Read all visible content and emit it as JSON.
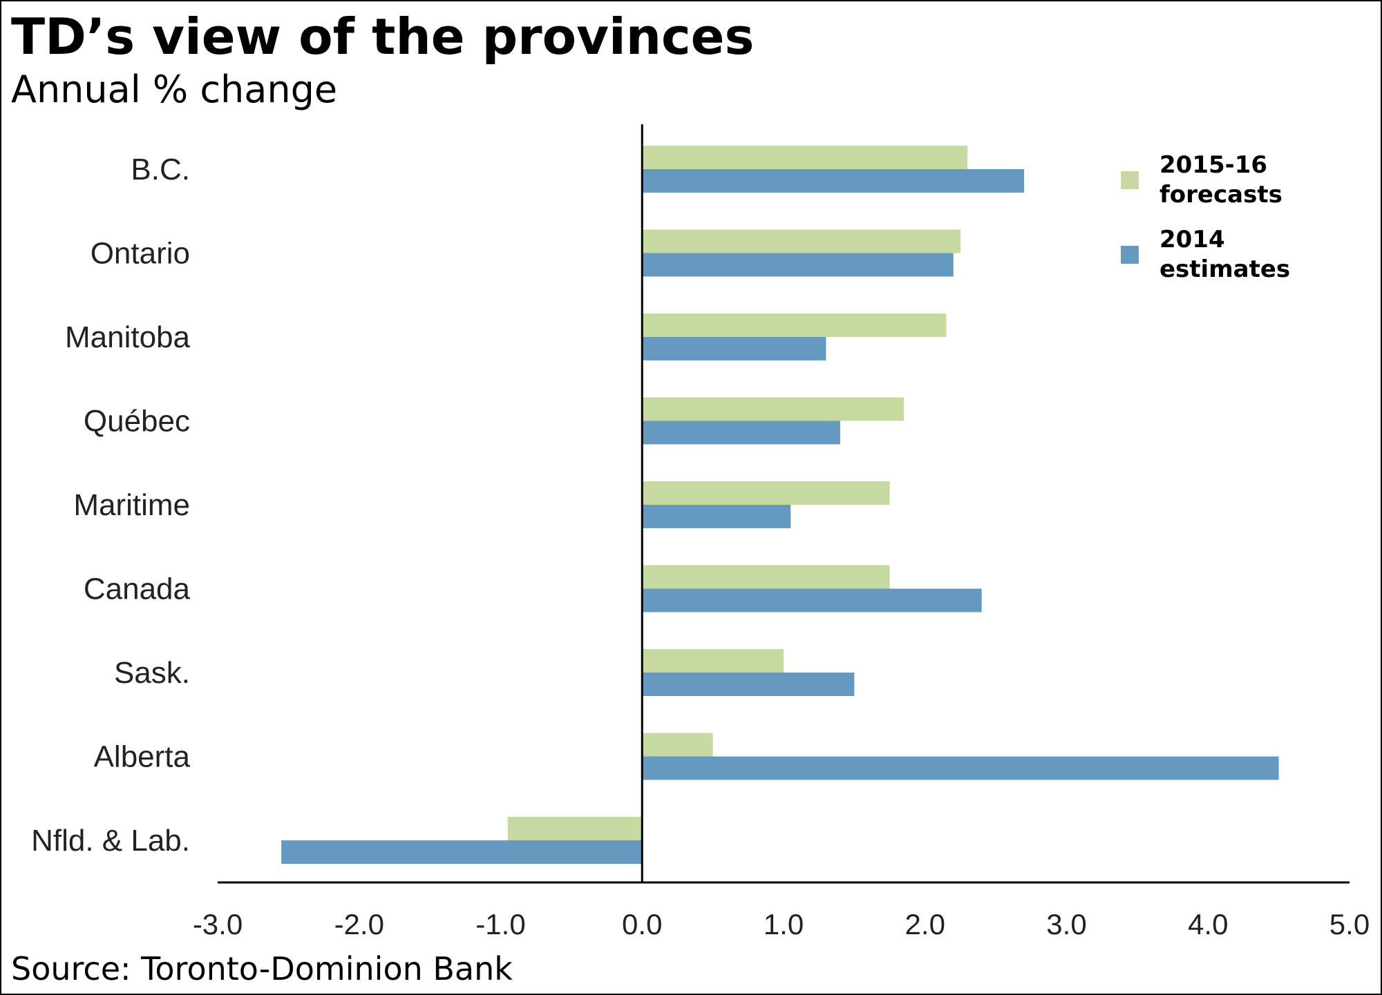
{
  "title": "TD’s view of the provinces",
  "subtitle": "Annual % change",
  "source": "Source: Toronto-Dominion Bank",
  "colors": {
    "forecast": "#c5d9a0",
    "estimate": "#6699bf",
    "axis": "#000000"
  },
  "chart_data": {
    "type": "bar",
    "orientation": "horizontal",
    "categories": [
      "B.C.",
      "Ontario",
      "Manitoba",
      "Québec",
      "Maritime",
      "Canada",
      "Sask.",
      "Alberta",
      "Nfld. & Lab."
    ],
    "series": [
      {
        "name": "2015-16 forecasts",
        "color": "#c5d9a0",
        "values": [
          2.3,
          2.25,
          2.15,
          1.85,
          1.75,
          1.75,
          1.0,
          0.5,
          -0.95
        ]
      },
      {
        "name": "2014 estimates",
        "color": "#6699bf",
        "values": [
          2.7,
          2.2,
          1.3,
          1.4,
          1.05,
          2.4,
          1.5,
          4.5,
          -2.55
        ]
      }
    ],
    "xlim": [
      -3.0,
      5.0
    ],
    "xticks": [
      "-3.0",
      "-2.0",
      "-1.0",
      "0.0",
      "1.0",
      "2.0",
      "3.0",
      "4.0",
      "5.0"
    ],
    "xtick_values": [
      -3,
      -2,
      -1,
      0,
      1,
      2,
      3,
      4,
      5
    ],
    "legend": {
      "position": "top-right",
      "entries": [
        {
          "line1": "2015-16",
          "line2": "forecasts"
        },
        {
          "line1": "2014",
          "line2": "estimates"
        }
      ]
    },
    "grid": false
  }
}
